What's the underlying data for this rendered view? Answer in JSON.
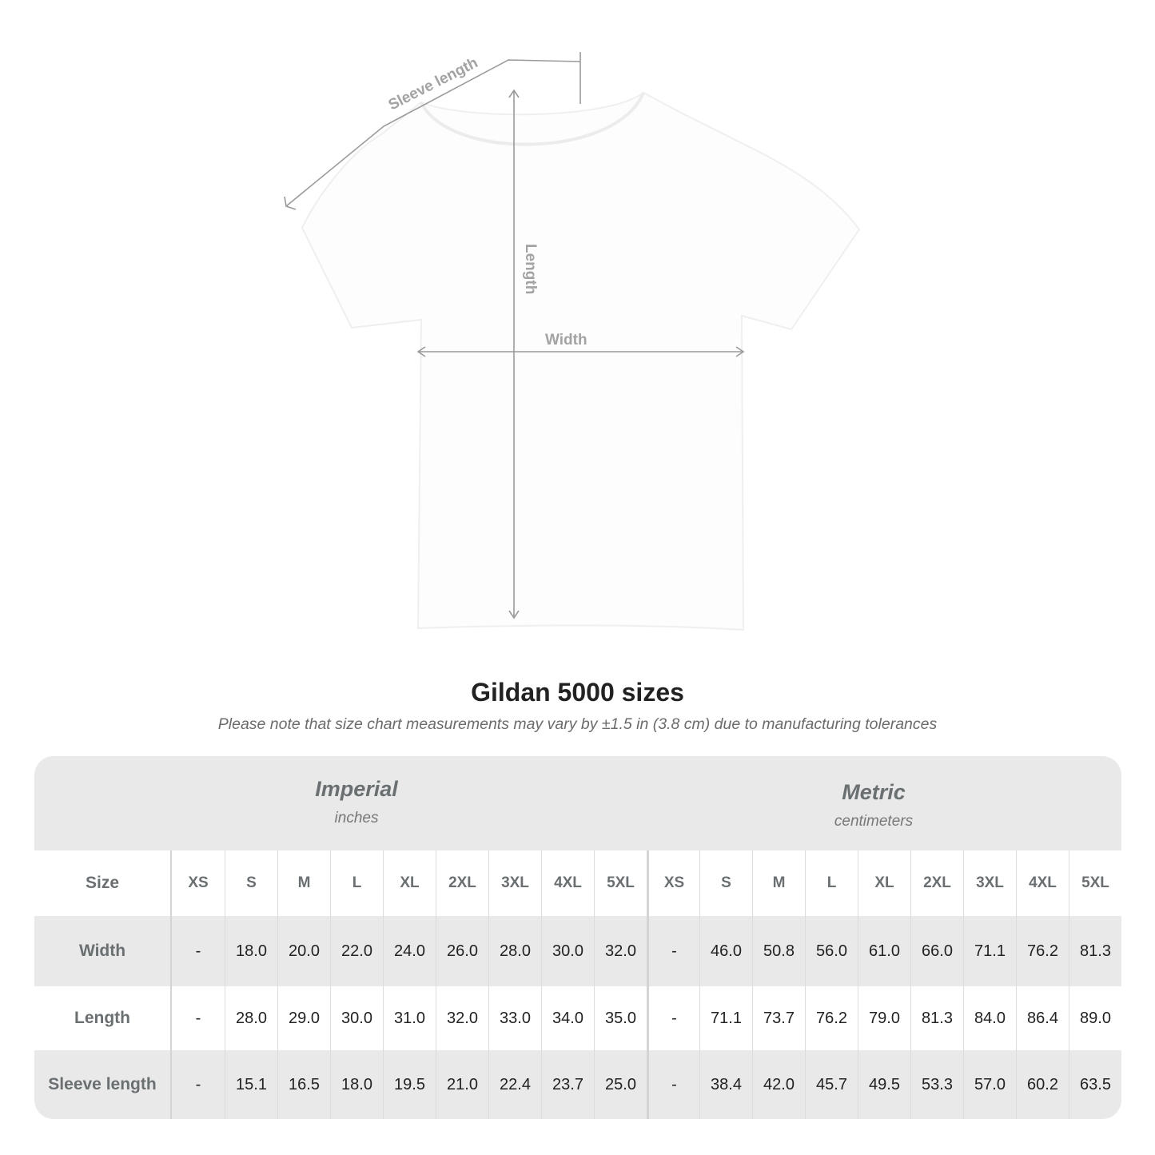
{
  "diagram": {
    "labels": {
      "sleeve": "Sleeve length",
      "length": "Length",
      "width": "Width"
    },
    "shirt_color": "#ffffff",
    "line_color": "#9a9a9a"
  },
  "title": "Gildan 5000 sizes",
  "note": "Please note that size chart measurements may vary by ±1.5 in (3.8 cm) due to manufacturing tolerances",
  "table": {
    "groups": [
      {
        "title": "Imperial",
        "unit": "inches"
      },
      {
        "title": "Metric",
        "unit": "centimeters"
      }
    ],
    "size_label": "Size",
    "sizes": [
      "XS",
      "S",
      "M",
      "L",
      "XL",
      "2XL",
      "3XL",
      "4XL",
      "5XL"
    ],
    "rows": [
      {
        "label": "Width",
        "imperial": [
          "-",
          "18.0",
          "20.0",
          "22.0",
          "24.0",
          "26.0",
          "28.0",
          "30.0",
          "32.0"
        ],
        "metric": [
          "-",
          "46.0",
          "50.8",
          "56.0",
          "61.0",
          "66.0",
          "71.1",
          "76.2",
          "81.3"
        ]
      },
      {
        "label": "Length",
        "imperial": [
          "-",
          "28.0",
          "29.0",
          "30.0",
          "31.0",
          "32.0",
          "33.0",
          "34.0",
          "35.0"
        ],
        "metric": [
          "-",
          "71.1",
          "73.7",
          "76.2",
          "79.0",
          "81.3",
          "84.0",
          "86.4",
          "89.0"
        ]
      },
      {
        "label": "Sleeve length",
        "imperial": [
          "-",
          "15.1",
          "16.5",
          "18.0",
          "19.5",
          "21.0",
          "22.4",
          "23.7",
          "25.0"
        ],
        "metric": [
          "-",
          "38.4",
          "42.0",
          "45.7",
          "49.5",
          "53.3",
          "57.0",
          "60.2",
          "63.5"
        ]
      }
    ]
  }
}
